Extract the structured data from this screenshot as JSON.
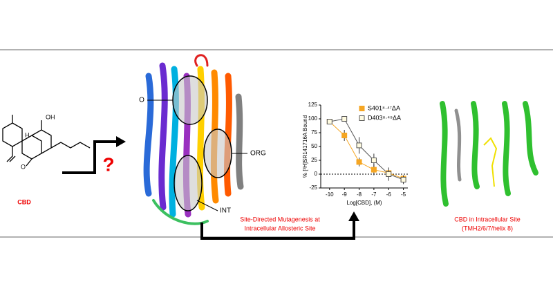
{
  "molecule": {
    "label": "CBD",
    "atoms": [
      "OH",
      "H",
      "O"
    ]
  },
  "question": "?",
  "protein_labels": [
    "O",
    "ORG",
    "INT"
  ],
  "arrow_caption": [
    "Site-Directed Mutagenesis at",
    "Intracellular Allosteric Site"
  ],
  "right_caption": [
    "CBD in Intracellular Site",
    "(TMH2/6/7/helix 8)"
  ],
  "chart_data": {
    "type": "line",
    "x": [
      -10,
      -9,
      -8,
      -7,
      -6,
      -5
    ],
    "series": [
      {
        "name": "S401⁸·⁴⁷ΔA",
        "color": "#f5a623",
        "filled": true,
        "values": [
          95,
          70,
          22,
          8,
          2,
          -8
        ],
        "errors": [
          3,
          10,
          8,
          10,
          4,
          5
        ]
      },
      {
        "name": "D403⁸·⁴⁹ΔA",
        "color": "#f0d060",
        "filled": false,
        "values": [
          95,
          100,
          52,
          25,
          0,
          -10
        ],
        "errors": [
          3,
          3,
          15,
          12,
          12,
          8
        ]
      }
    ],
    "xlabel": "Log[CBD], (M)",
    "ylabel": "% [³H]SR141716A Bound",
    "xlim": [
      -10.6,
      -4.7
    ],
    "ylim": [
      -25,
      125
    ],
    "xticks": [
      -10,
      -9,
      -8,
      -7,
      -6,
      -5
    ],
    "yticks": [
      -25,
      0,
      25,
      50,
      75,
      100,
      125
    ],
    "reference_line": 0,
    "legend": "top-right"
  }
}
